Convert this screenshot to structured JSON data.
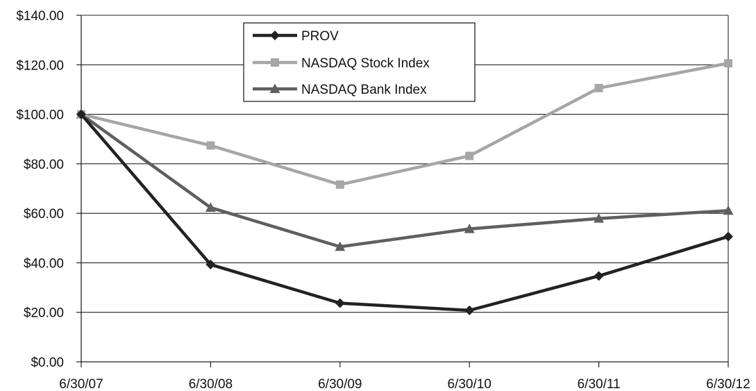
{
  "chart_data": {
    "type": "line",
    "title": "",
    "xlabel": "",
    "ylabel": "",
    "categories": [
      "6/30/07",
      "6/30/08",
      "6/30/09",
      "6/30/10",
      "6/30/11",
      "6/30/12"
    ],
    "y_tick_labels": [
      "$0.00",
      "$20.00",
      "$40.00",
      "$60.00",
      "$80.00",
      "$100.00",
      "$120.00",
      "$140.00"
    ],
    "ylim": [
      0,
      140
    ],
    "y_tick_step": 20,
    "grid": "horizontal",
    "legend_position": "top-center",
    "series": [
      {
        "name": "PROV",
        "marker": "diamond",
        "color": "#222222",
        "values": [
          100,
          39.3,
          23.7,
          20.8,
          34.7,
          50.6
        ]
      },
      {
        "name": "NASDAQ Stock Index",
        "marker": "square",
        "color": "#a6a6a6",
        "values": [
          100,
          87.4,
          71.6,
          83.2,
          110.6,
          120.6
        ]
      },
      {
        "name": "NASDAQ Bank Index",
        "marker": "triangle",
        "color": "#5f5f5f",
        "values": [
          100,
          62.3,
          46.5,
          53.7,
          57.9,
          61.1
        ]
      }
    ]
  }
}
